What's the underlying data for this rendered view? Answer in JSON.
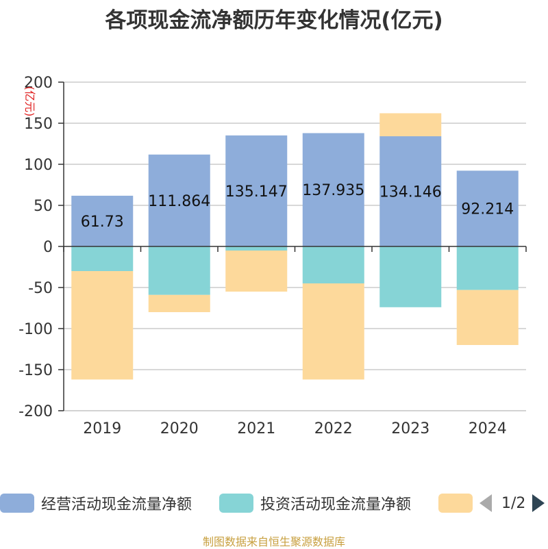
{
  "title": "各项现金流净额历年变化情况(亿元)",
  "source": "制图数据来自恒生聚源数据库",
  "legend_pager": "1/2",
  "colors": {
    "operating": "#8eadda",
    "investing": "#86d4d6",
    "financing": "#fdd99b",
    "grid": "#cccccc",
    "axis": "#333333"
  },
  "chart_data": {
    "type": "bar",
    "stacked": true,
    "unit_label": "(亿元)",
    "categories": [
      "2019",
      "2020",
      "2021",
      "2022",
      "2023",
      "2024"
    ],
    "ylim": [
      -200,
      200
    ],
    "yticks": [
      200,
      150,
      100,
      50,
      0,
      -50,
      -100,
      -150,
      -200
    ],
    "grid": true,
    "legend_position": "bottom",
    "series": [
      {
        "name": "经营活动现金流量净额",
        "values": [
          61.73,
          111.864,
          135.147,
          137.935,
          134.146,
          92.214
        ],
        "labels": [
          "61.73",
          "111.864",
          "135.147",
          "137.935",
          "134.146",
          "92.214"
        ]
      },
      {
        "name": "投资活动现金流量净额",
        "values": [
          -30,
          -59,
          -5,
          -45,
          -74,
          -53
        ]
      },
      {
        "name": "",
        "values": [
          -132,
          -21,
          -50,
          -117,
          28,
          -67
        ]
      }
    ]
  }
}
